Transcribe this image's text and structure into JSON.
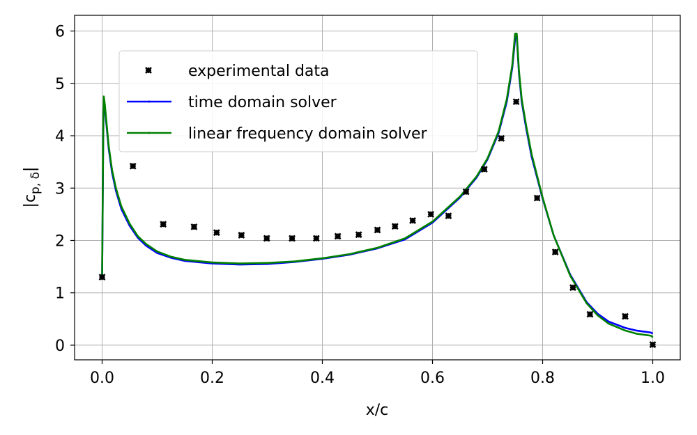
{
  "chart_data": {
    "type": "line",
    "title": "",
    "xlabel": "x/c",
    "ylabel_main": "|c",
    "ylabel_sub": "p, δ",
    "ylabel_end": "|",
    "xlim": [
      -0.05,
      1.05
    ],
    "ylim": [
      -0.28,
      6.3
    ],
    "grid": true,
    "legend_placement": "upper-left",
    "x_ticks": [
      0.0,
      0.2,
      0.4,
      0.6,
      0.8,
      1.0
    ],
    "x_tick_labels": [
      "0.0",
      "0.2",
      "0.4",
      "0.6",
      "0.8",
      "1.0"
    ],
    "y_ticks": [
      0,
      1,
      2,
      3,
      4,
      5,
      6
    ],
    "y_tick_labels": [
      "0",
      "1",
      "2",
      "3",
      "4",
      "5",
      "6"
    ],
    "series": [
      {
        "name": "experimental data",
        "kind": "markers",
        "color": "#000000",
        "x": [
          0.0,
          0.056,
          0.111,
          0.167,
          0.208,
          0.253,
          0.299,
          0.345,
          0.389,
          0.428,
          0.466,
          0.5,
          0.532,
          0.564,
          0.597,
          0.629,
          0.661,
          0.694,
          0.725,
          0.752,
          0.79,
          0.823,
          0.855,
          0.886,
          0.95,
          1.0
        ],
        "y": [
          1.3,
          3.42,
          2.31,
          2.26,
          2.15,
          2.1,
          2.04,
          2.04,
          2.04,
          2.08,
          2.11,
          2.2,
          2.27,
          2.38,
          2.5,
          2.47,
          2.93,
          3.36,
          3.95,
          4.65,
          2.81,
          1.78,
          1.1,
          0.59,
          0.55,
          0.01
        ]
      },
      {
        "name": "time domain solver",
        "kind": "line",
        "color": "#0000ff",
        "x": [
          0.0,
          0.001,
          0.002,
          0.003,
          0.005,
          0.008,
          0.012,
          0.018,
          0.025,
          0.035,
          0.05,
          0.065,
          0.08,
          0.1,
          0.125,
          0.15,
          0.2,
          0.25,
          0.3,
          0.35,
          0.4,
          0.45,
          0.5,
          0.55,
          0.6,
          0.65,
          0.68,
          0.7,
          0.72,
          0.735,
          0.745,
          0.75,
          0.753,
          0.757,
          0.762,
          0.77,
          0.78,
          0.8,
          0.82,
          0.85,
          0.88,
          0.9,
          0.92,
          0.95,
          0.97,
          0.99,
          0.997,
          1.0
        ],
        "y": [
          1.3,
          2.6,
          4.0,
          4.7,
          4.55,
          4.2,
          3.75,
          3.3,
          2.95,
          2.6,
          2.28,
          2.05,
          1.9,
          1.76,
          1.67,
          1.61,
          1.56,
          1.54,
          1.55,
          1.59,
          1.65,
          1.73,
          1.85,
          2.02,
          2.34,
          2.82,
          3.2,
          3.55,
          4.05,
          4.65,
          5.3,
          5.85,
          5.9,
          5.2,
          4.65,
          4.15,
          3.6,
          2.8,
          2.1,
          1.35,
          0.82,
          0.6,
          0.45,
          0.33,
          0.28,
          0.25,
          0.24,
          0.22
        ]
      },
      {
        "name": "linear frequency domain solver",
        "kind": "line",
        "color": "#008000",
        "x": [
          0.0,
          0.001,
          0.002,
          0.003,
          0.005,
          0.008,
          0.012,
          0.018,
          0.025,
          0.035,
          0.05,
          0.065,
          0.08,
          0.1,
          0.125,
          0.15,
          0.2,
          0.25,
          0.3,
          0.35,
          0.4,
          0.45,
          0.5,
          0.55,
          0.6,
          0.65,
          0.68,
          0.7,
          0.72,
          0.735,
          0.745,
          0.75,
          0.753,
          0.757,
          0.762,
          0.77,
          0.78,
          0.8,
          0.82,
          0.85,
          0.88,
          0.9,
          0.92,
          0.95,
          0.97,
          0.99,
          0.997,
          1.0
        ],
        "y": [
          1.35,
          2.7,
          4.1,
          4.75,
          4.6,
          4.25,
          3.8,
          3.35,
          3.0,
          2.65,
          2.32,
          2.08,
          1.93,
          1.79,
          1.69,
          1.63,
          1.58,
          1.56,
          1.57,
          1.6,
          1.66,
          1.74,
          1.86,
          2.04,
          2.36,
          2.84,
          3.22,
          3.57,
          4.08,
          4.7,
          5.35,
          5.95,
          5.95,
          5.25,
          4.7,
          4.2,
          3.65,
          2.82,
          2.1,
          1.33,
          0.8,
          0.57,
          0.41,
          0.28,
          0.22,
          0.19,
          0.18,
          0.15
        ]
      }
    ]
  }
}
